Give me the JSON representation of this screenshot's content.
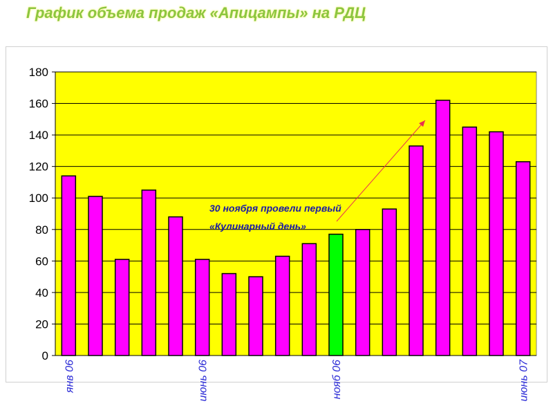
{
  "title": "График объема продаж «Апицампы» на РДЦ",
  "chart_data": {
    "type": "bar",
    "title": "",
    "xlabel": "",
    "ylabel": "",
    "ylim": [
      0,
      180
    ],
    "yticks": [
      0,
      20,
      40,
      60,
      80,
      100,
      120,
      140,
      160,
      180
    ],
    "grid": true,
    "legend": "none",
    "plot_background": "#FFFF00",
    "bar_color": "#FF00FF",
    "highlight_color": "#00FF00",
    "highlight_index": 10,
    "values": [
      114,
      101,
      61,
      105,
      88,
      61,
      52,
      50,
      63,
      71,
      77,
      80,
      93,
      133,
      162,
      145,
      142,
      123
    ],
    "x_tick_labels": [
      {
        "index": 0,
        "text": "янв 06"
      },
      {
        "index": 5,
        "text": "июнь 06"
      },
      {
        "index": 10,
        "text": "нояб 06"
      },
      {
        "index": 17,
        "text": "июнь 07"
      }
    ],
    "annotation": {
      "lines": [
        "30 ноября провели первый",
        "«Кулинарный день»"
      ],
      "arrow_color": "#E83050"
    }
  }
}
